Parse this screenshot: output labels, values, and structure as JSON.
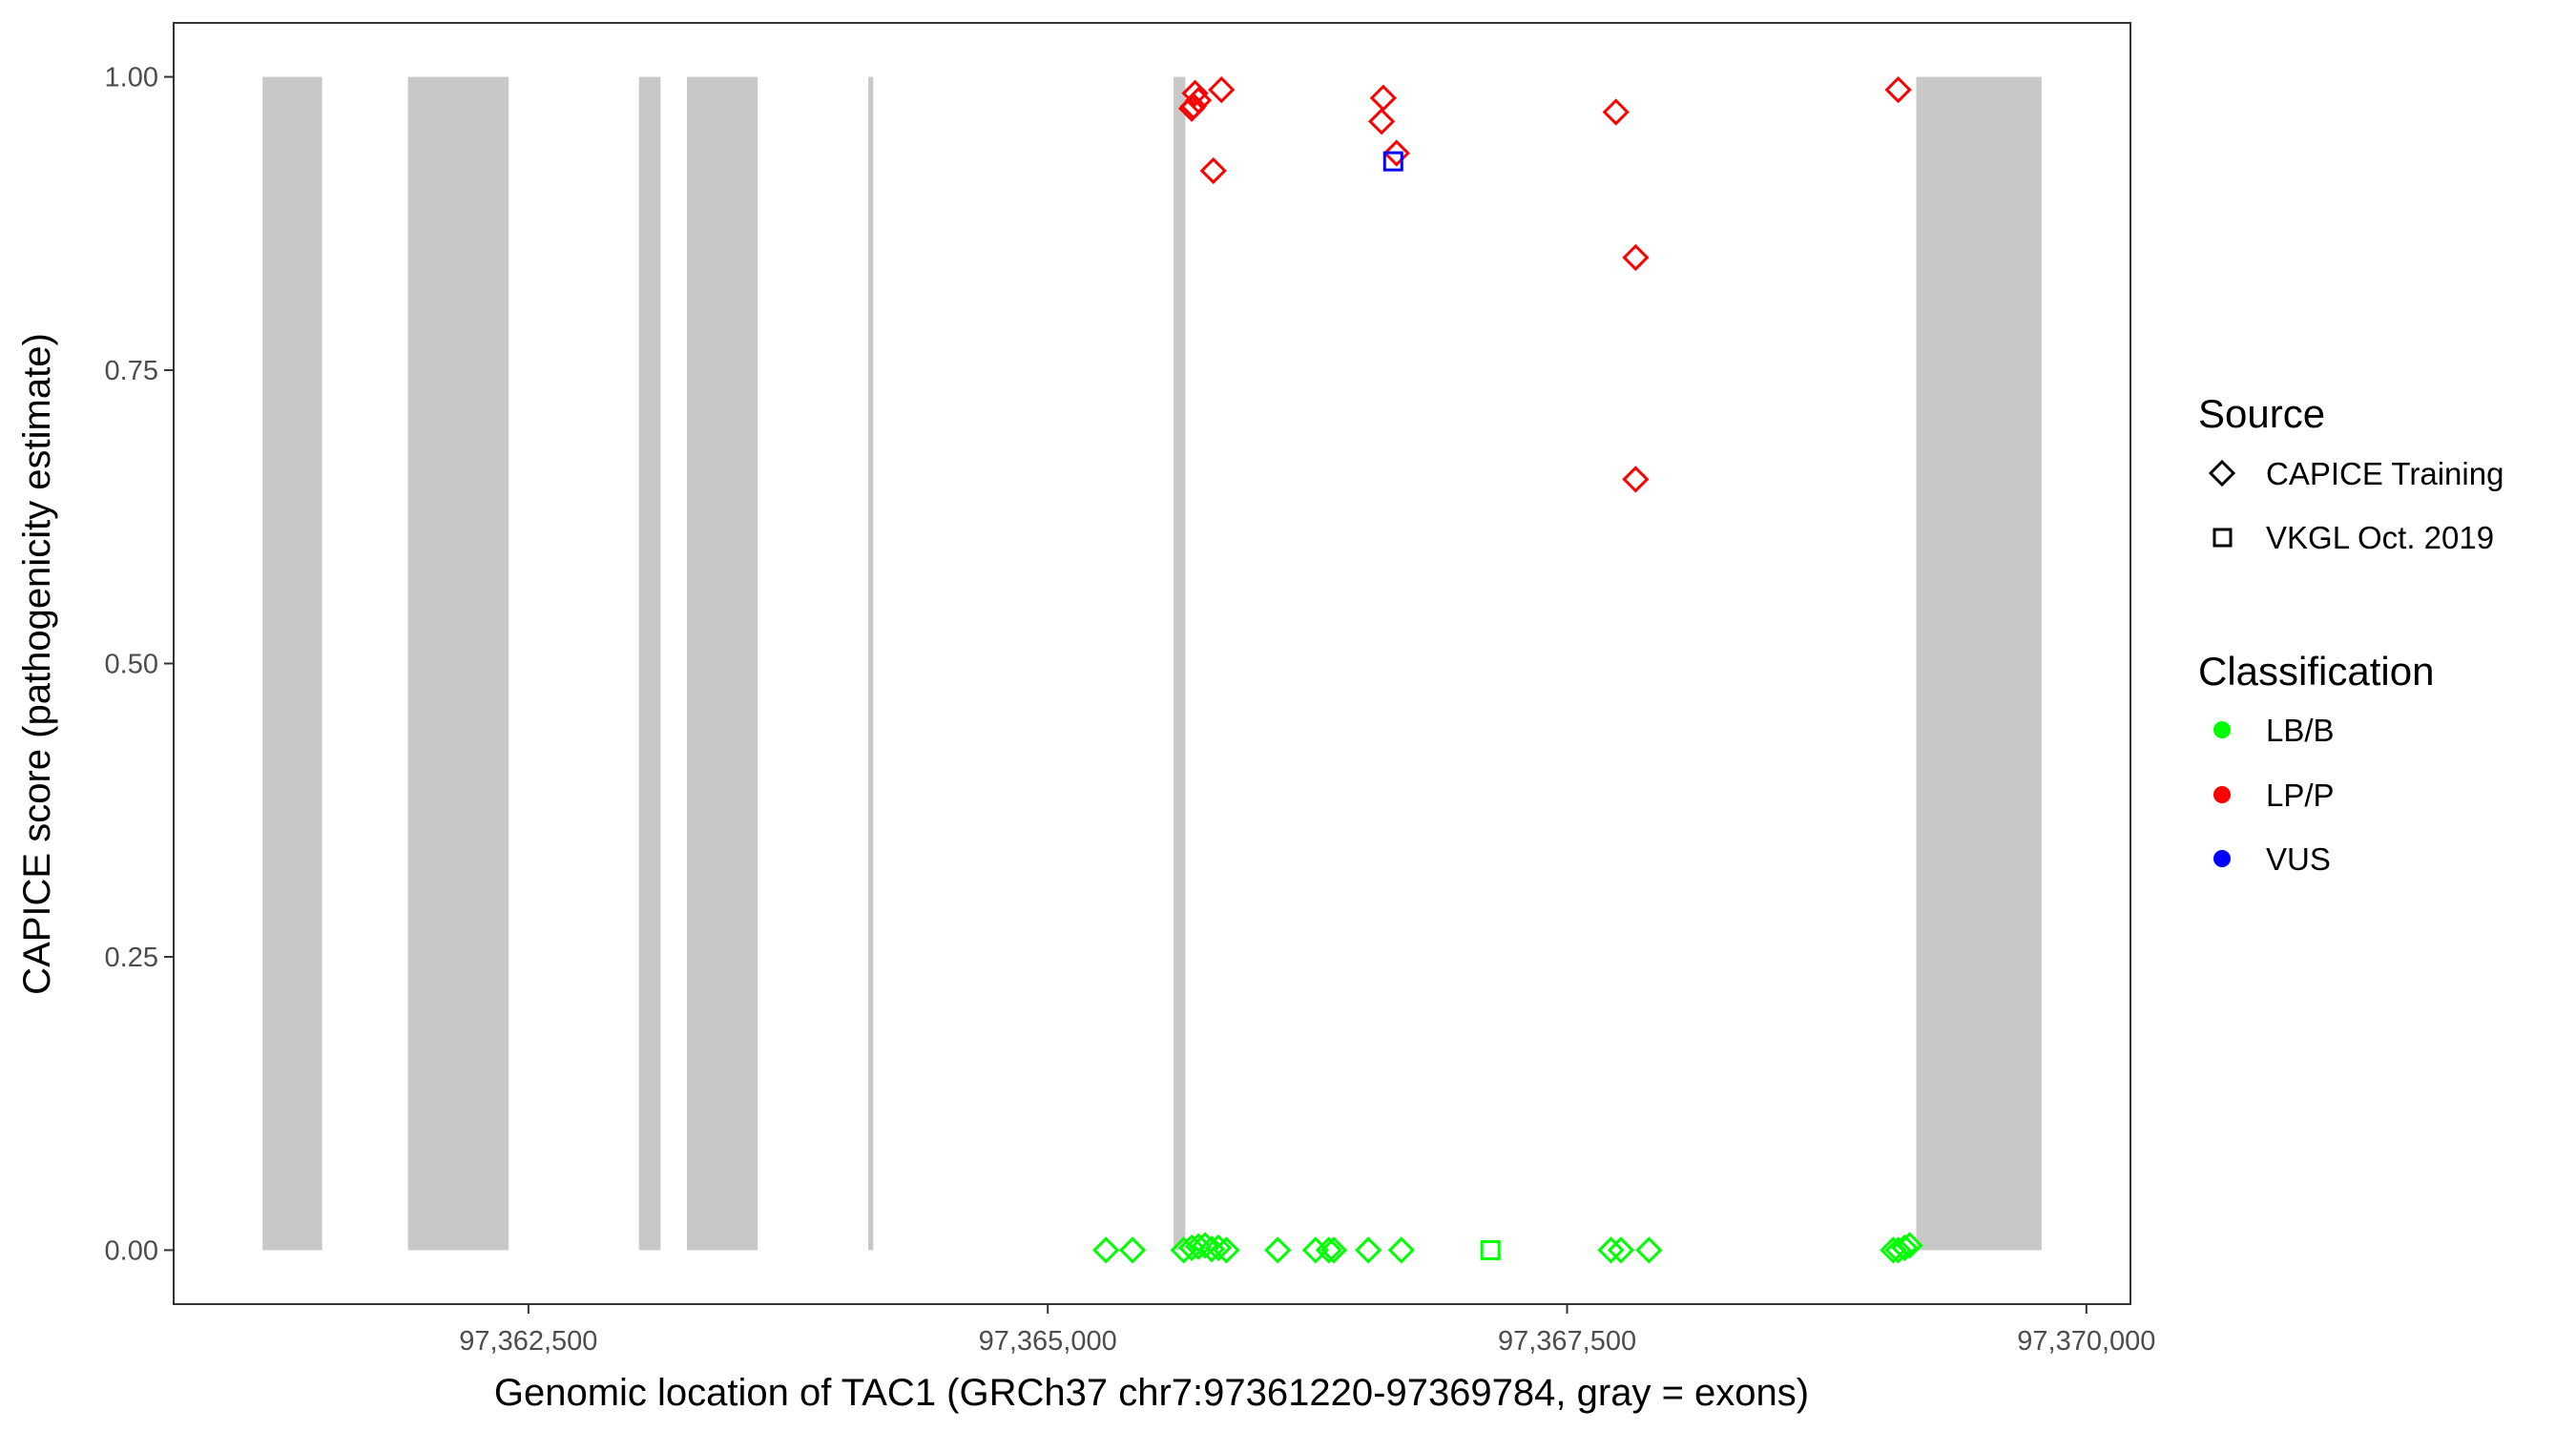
{
  "chart_data": {
    "type": "scatter",
    "title": "",
    "xlabel": "Genomic location of TAC1 (GRCh37 chr7:97361220-97369784, gray = exons)",
    "ylabel": "CAPICE score (pathogenicity estimate)",
    "xlim": [
      97360792,
      97370212
    ],
    "ylim": [
      -0.046,
      1.046
    ],
    "x_ticks": [
      97362500,
      97365000,
      97367500,
      97370000
    ],
    "x_tick_labels": [
      "97,362,500",
      "97,365,000",
      "97,367,500",
      "97,370,000"
    ],
    "y_ticks": [
      0,
      0.25,
      0.5,
      0.75,
      1.0
    ],
    "y_tick_labels": [
      "0.00",
      "0.25",
      "0.50",
      "0.75",
      "1.00"
    ],
    "grid": false,
    "exons": [
      [
        97361220,
        97361507
      ],
      [
        97361920,
        97362405
      ],
      [
        97363032,
        97363136
      ],
      [
        97363263,
        97363604
      ],
      [
        97364136,
        97364160
      ],
      [
        97365606,
        97365662
      ],
      [
        97369181,
        97369784
      ]
    ],
    "exon_color": "#c8c8c8",
    "legend_placement": "right",
    "legends": {
      "source": {
        "title": "Source",
        "items": [
          {
            "label": "CAPICE Training",
            "shape": "diamond"
          },
          {
            "label": "VKGL Oct. 2019",
            "shape": "square"
          }
        ]
      },
      "classification": {
        "title": "Classification",
        "items": [
          {
            "label": "LB/B",
            "color": "#00ff00"
          },
          {
            "label": "LP/P",
            "color": "#ff0000"
          },
          {
            "label": "VUS",
            "color": "#0000ff"
          }
        ]
      }
    },
    "points": [
      {
        "x": 97365709,
        "y": 0.986,
        "source": "CAPICE Training",
        "class": "LP/P"
      },
      {
        "x": 97365701,
        "y": 0.975,
        "source": "CAPICE Training",
        "class": "LP/P"
      },
      {
        "x": 97365725,
        "y": 0.98,
        "source": "CAPICE Training",
        "class": "LP/P"
      },
      {
        "x": 97365693,
        "y": 0.973,
        "source": "CAPICE Training",
        "class": "LP/P"
      },
      {
        "x": 97365836,
        "y": 0.989,
        "source": "CAPICE Training",
        "class": "LP/P"
      },
      {
        "x": 97365797,
        "y": 0.92,
        "source": "CAPICE Training",
        "class": "LP/P"
      },
      {
        "x": 97366615,
        "y": 0.982,
        "source": "CAPICE Training",
        "class": "LP/P"
      },
      {
        "x": 97366607,
        "y": 0.962,
        "source": "CAPICE Training",
        "class": "LP/P"
      },
      {
        "x": 97366679,
        "y": 0.935,
        "source": "CAPICE Training",
        "class": "LP/P"
      },
      {
        "x": 97367735,
        "y": 0.97,
        "source": "CAPICE Training",
        "class": "LP/P"
      },
      {
        "x": 97367830,
        "y": 0.846,
        "source": "CAPICE Training",
        "class": "LP/P"
      },
      {
        "x": 97367830,
        "y": 0.657,
        "source": "CAPICE Training",
        "class": "LP/P"
      },
      {
        "x": 97369094,
        "y": 0.989,
        "source": "CAPICE Training",
        "class": "LP/P"
      },
      {
        "x": 97366663,
        "y": 0.928,
        "source": "VKGL Oct. 2019",
        "class": "VUS"
      },
      {
        "x": 97365280,
        "y": 0.0,
        "source": "CAPICE Training",
        "class": "LB/B"
      },
      {
        "x": 97365408,
        "y": 0.0,
        "source": "CAPICE Training",
        "class": "LB/B"
      },
      {
        "x": 97365654,
        "y": 0.0,
        "source": "CAPICE Training",
        "class": "LB/B"
      },
      {
        "x": 97365693,
        "y": 0.002,
        "source": "CAPICE Training",
        "class": "LB/B"
      },
      {
        "x": 97365725,
        "y": 0.003,
        "source": "CAPICE Training",
        "class": "LB/B"
      },
      {
        "x": 97365757,
        "y": 0.004,
        "source": "CAPICE Training",
        "class": "LB/B"
      },
      {
        "x": 97365789,
        "y": 0.001,
        "source": "CAPICE Training",
        "class": "LB/B"
      },
      {
        "x": 97365821,
        "y": 0.002,
        "source": "CAPICE Training",
        "class": "LB/B"
      },
      {
        "x": 97365860,
        "y": 0.0,
        "source": "CAPICE Training",
        "class": "LB/B"
      },
      {
        "x": 97366107,
        "y": 0.0,
        "source": "CAPICE Training",
        "class": "LB/B"
      },
      {
        "x": 97366289,
        "y": 0.0,
        "source": "CAPICE Training",
        "class": "LB/B"
      },
      {
        "x": 97366353,
        "y": 0.0,
        "source": "CAPICE Training",
        "class": "LB/B"
      },
      {
        "x": 97366377,
        "y": 0.0,
        "source": "CAPICE Training",
        "class": "LB/B"
      },
      {
        "x": 97366543,
        "y": 0.0,
        "source": "CAPICE Training",
        "class": "LB/B"
      },
      {
        "x": 97366702,
        "y": 0.0,
        "source": "CAPICE Training",
        "class": "LB/B"
      },
      {
        "x": 97367711,
        "y": 0.0,
        "source": "CAPICE Training",
        "class": "LB/B"
      },
      {
        "x": 97367759,
        "y": 0.0,
        "source": "CAPICE Training",
        "class": "LB/B"
      },
      {
        "x": 97367894,
        "y": 0.0,
        "source": "CAPICE Training",
        "class": "LB/B"
      },
      {
        "x": 97369070,
        "y": 0.0,
        "source": "CAPICE Training",
        "class": "LB/B"
      },
      {
        "x": 97369094,
        "y": 0.0,
        "source": "CAPICE Training",
        "class": "LB/B"
      },
      {
        "x": 97369125,
        "y": 0.002,
        "source": "CAPICE Training",
        "class": "LB/B"
      },
      {
        "x": 97369149,
        "y": 0.004,
        "source": "CAPICE Training",
        "class": "LB/B"
      },
      {
        "x": 97367131,
        "y": 0.0,
        "source": "VKGL Oct. 2019",
        "class": "LB/B"
      }
    ]
  }
}
